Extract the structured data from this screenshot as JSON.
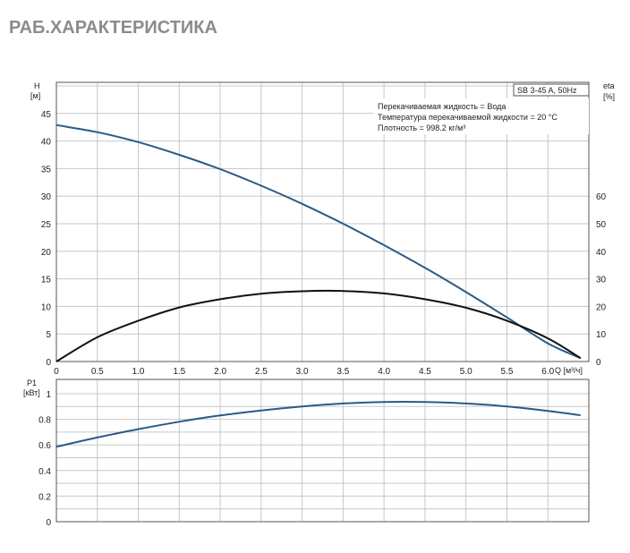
{
  "page": {
    "title": "РАБ.ХАРАКТЕРИСТИКА"
  },
  "colors": {
    "head_curve": "#2b5a86",
    "eta_curve": "#111111",
    "power_curve": "#2b5a86",
    "grid": "#c8c8c8",
    "frame": "#555555"
  },
  "chart_data": [
    {
      "type": "line",
      "title": "",
      "xlabel": "Q [м³/ч]",
      "ylabel": "H [м]",
      "ylabel_parts": [
        "H",
        "[м]"
      ],
      "y2label": "eta [%]",
      "y2label_parts": [
        "eta",
        "[%]"
      ],
      "xlim": [
        0,
        6.5
      ],
      "ylim": [
        0,
        50
      ],
      "y2lim": [
        0,
        100
      ],
      "grid": true,
      "x_ticks": [
        "0",
        "0.5",
        "1.0",
        "1.5",
        "2.0",
        "2.5",
        "3.0",
        "3.5",
        "4.0",
        "4.5",
        "5.0",
        "5.5",
        "6.0"
      ],
      "x_tick_values": [
        0,
        0.5,
        1.0,
        1.5,
        2.0,
        2.5,
        3.0,
        3.5,
        4.0,
        4.5,
        5.0,
        5.5,
        6.0
      ],
      "y_ticks": [
        "0",
        "5",
        "10",
        "15",
        "20",
        "25",
        "30",
        "35",
        "40",
        "45"
      ],
      "y_tick_values": [
        0,
        5,
        10,
        15,
        20,
        25,
        30,
        35,
        40,
        45
      ],
      "y2_ticks": [
        "0",
        "10",
        "20",
        "30",
        "40",
        "50",
        "60"
      ],
      "y2_tick_values": [
        0,
        10,
        20,
        30,
        40,
        50,
        60
      ],
      "legend": {
        "placement": "top-right",
        "label": "SB 3-45 A, 50Hz",
        "lines": [
          "Перекачиваемая жидкость = Вода",
          "Температура перекачиваемой жидкости = 20 °C",
          "Плотность = 998.2 кг/м³"
        ]
      },
      "series": [
        {
          "name": "H",
          "axis": "left",
          "x": [
            0,
            0.5,
            1.0,
            1.5,
            2.0,
            2.5,
            3.0,
            3.5,
            4.0,
            4.5,
            5.0,
            5.5,
            6.0,
            6.4
          ],
          "y": [
            42.9,
            41.6,
            39.8,
            37.5,
            34.9,
            31.9,
            28.6,
            25.0,
            21.1,
            17.0,
            12.6,
            8.0,
            3.3,
            0.6
          ]
        },
        {
          "name": "eta",
          "axis": "right",
          "x": [
            0,
            0.5,
            1.0,
            1.5,
            2.0,
            2.5,
            3.0,
            3.5,
            4.0,
            4.5,
            5.0,
            5.5,
            6.0,
            6.4
          ],
          "y": [
            0,
            8.8,
            14.8,
            19.6,
            22.6,
            24.6,
            25.5,
            25.6,
            24.7,
            22.6,
            19.5,
            14.8,
            8.4,
            1.2
          ]
        }
      ]
    },
    {
      "type": "line",
      "title": "",
      "xlabel": "",
      "ylabel": "P1 [кВт]",
      "ylabel_parts": [
        "P1",
        "[кВт]"
      ],
      "xlim": [
        0,
        6.5
      ],
      "ylim": [
        0,
        1.0
      ],
      "grid": true,
      "y_ticks": [
        "0",
        "0.2",
        "0.4",
        "0.6",
        "0.8",
        "1"
      ],
      "y_tick_values": [
        0,
        0.2,
        0.4,
        0.6,
        0.8,
        1.0
      ],
      "series": [
        {
          "name": "P1",
          "x": [
            0,
            0.5,
            1.0,
            1.5,
            2.0,
            2.5,
            3.0,
            3.5,
            4.0,
            4.5,
            5.0,
            5.5,
            6.0,
            6.4
          ],
          "y": [
            0.585,
            0.658,
            0.723,
            0.781,
            0.83,
            0.869,
            0.901,
            0.924,
            0.936,
            0.936,
            0.924,
            0.901,
            0.866,
            0.832
          ]
        }
      ]
    }
  ]
}
